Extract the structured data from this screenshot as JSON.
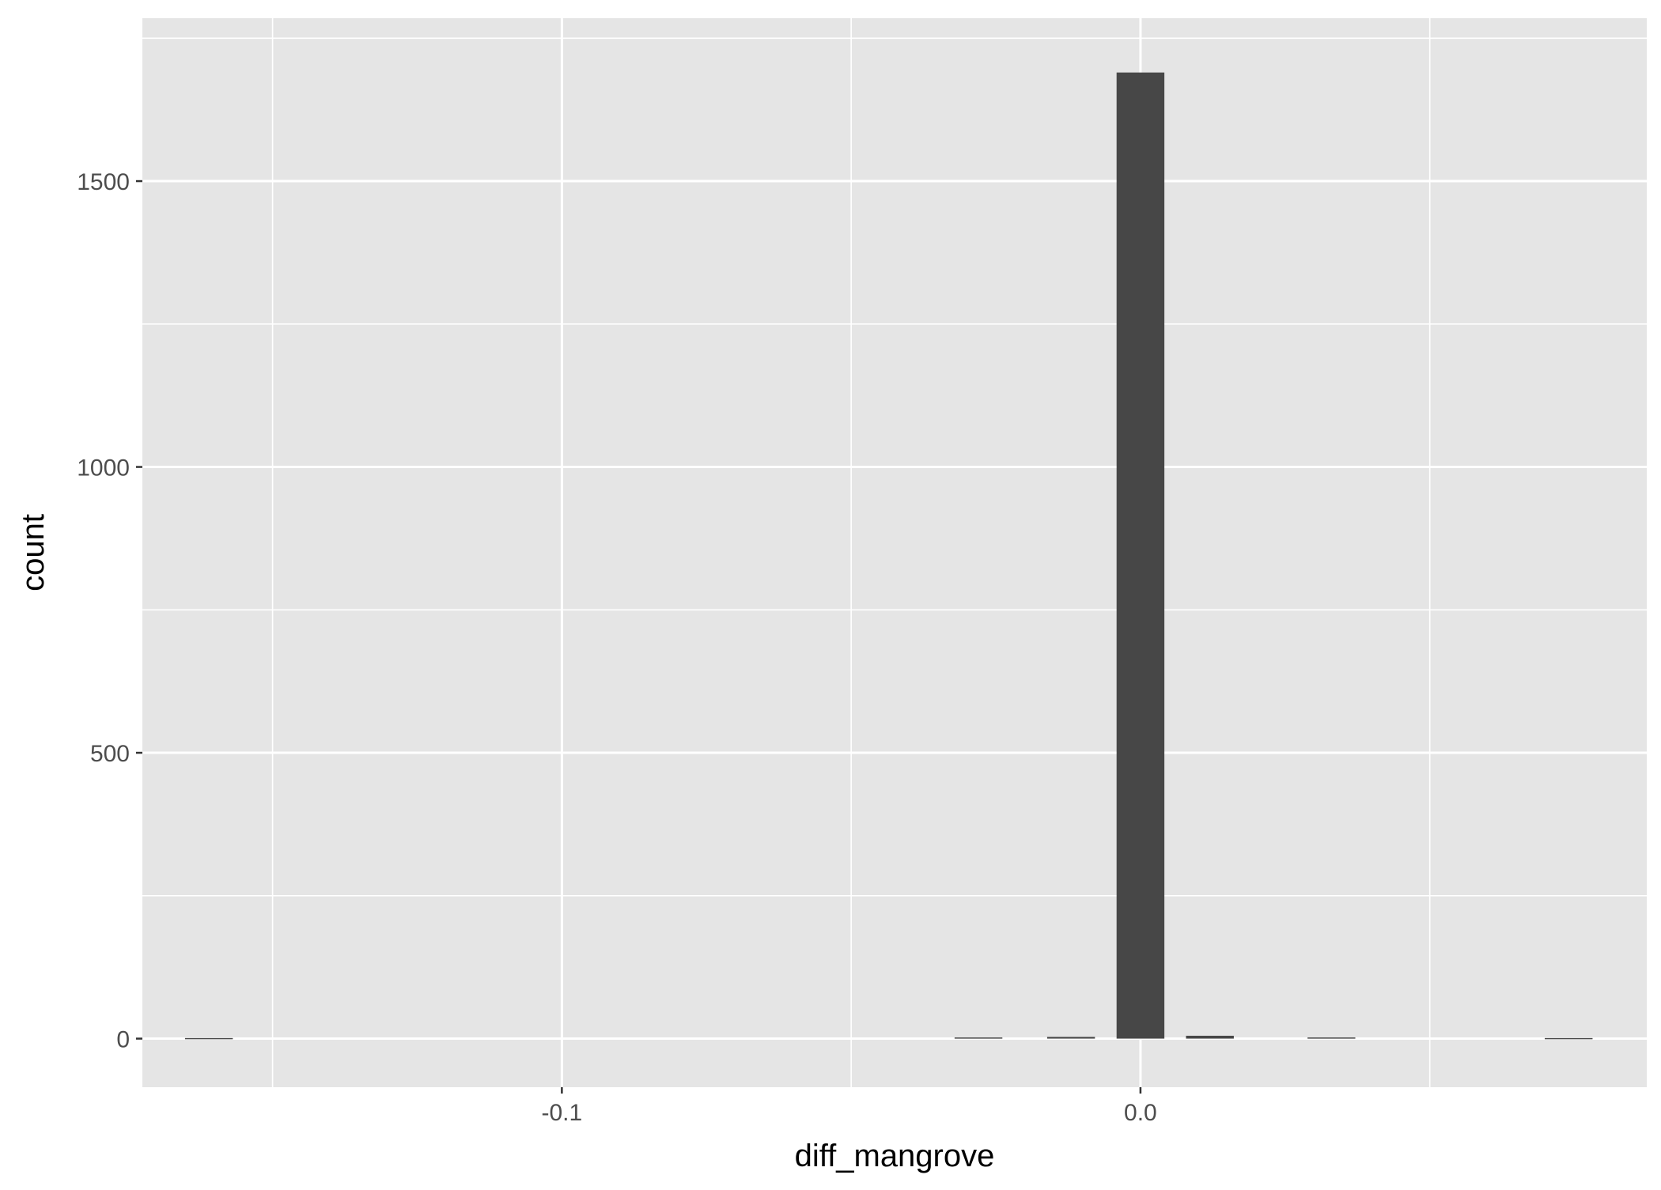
{
  "chart_data": {
    "type": "bar",
    "subtype": "histogram",
    "title": "",
    "xlabel": "diff_mangrove",
    "ylabel": "count",
    "xlim": [
      -0.1725,
      0.0875
    ],
    "ylim": [
      -85,
      1785
    ],
    "x_ticks": [
      -0.1,
      0.0
    ],
    "x_tick_labels": [
      "-0.1",
      "0.0"
    ],
    "y_ticks": [
      0,
      500,
      1000,
      1500
    ],
    "y_tick_labels": [
      "0",
      "500",
      "1000",
      "1500"
    ],
    "grid": true,
    "legend": "none",
    "bin_width": 0.00826,
    "bins": [
      {
        "x": -0.161,
        "count": 1
      },
      {
        "x": -0.028,
        "count": 2
      },
      {
        "x": -0.012,
        "count": 3
      },
      {
        "x": 0.0,
        "count": 1690
      },
      {
        "x": 0.012,
        "count": 5
      },
      {
        "x": 0.033,
        "count": 2
      },
      {
        "x": 0.074,
        "count": 1
      }
    ],
    "colors": {
      "panel_background": "#e5e5e5",
      "grid": "#ffffff",
      "bar": "#474747",
      "tick_text": "#4d4d4d",
      "title_text": "#000000"
    }
  }
}
